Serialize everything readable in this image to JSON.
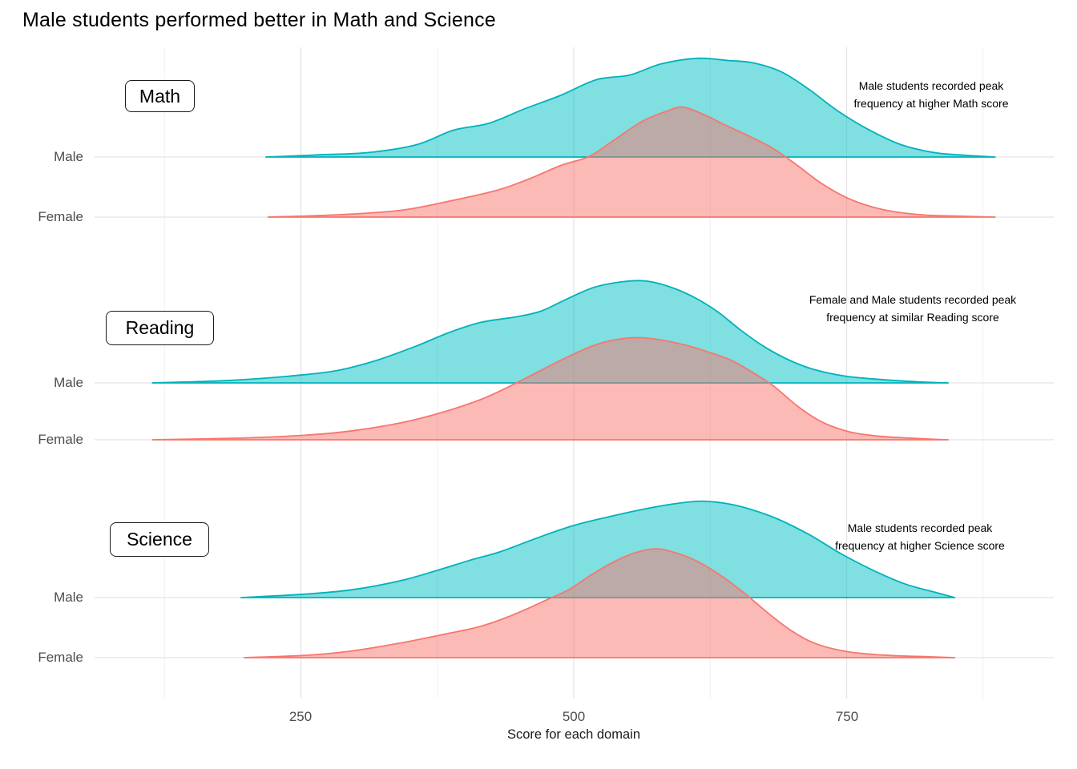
{
  "title": "Male students performed better in Math and Science",
  "x_axis": {
    "title": "Score for each domain",
    "tick_labels": [
      "250",
      "500",
      "750"
    ]
  },
  "row_labels": {
    "male": "Male",
    "female": "Female"
  },
  "panels": [
    {
      "label": "Math",
      "annotation_line1": "Male students recorded peak",
      "annotation_line2": "frequency at higher Math score"
    },
    {
      "label": "Reading",
      "annotation_line1": "Female and Male students recorded peak",
      "annotation_line2": "frequency at similar Reading score"
    },
    {
      "label": "Science",
      "annotation_line1": "Male students recorded peak",
      "annotation_line2": "frequency at higher Science score"
    }
  ],
  "colors": {
    "male_stroke": "#00B2BB",
    "male_fill": "rgba(0,191,196,0.5)",
    "female_stroke": "#F8766D",
    "female_fill": "rgba(248,118,109,0.5)",
    "grid_major": "#E4E4E4",
    "grid_minor": "#F1F1F1",
    "row_line": "#E4E4E4",
    "axis_text": "#4D4D4D",
    "text": "#000000"
  },
  "chart_data": {
    "type": "area",
    "subtype": "ridgeline-density",
    "title": "Male students performed better in Math and Science",
    "xlabel": "Score for each domain",
    "ylabel": "",
    "x_ticks": [
      250,
      500,
      750
    ],
    "x_minor_ticks": [
      125,
      375,
      625,
      875
    ],
    "x_range": [
      60,
      940
    ],
    "legend": "none",
    "groups": [
      "Male",
      "Female"
    ],
    "domains": [
      "Math",
      "Reading",
      "Science"
    ],
    "series": [
      {
        "domain": "Math",
        "gender": "Male",
        "panel": 0,
        "points": [
          [
            218,
            0
          ],
          [
            250,
            0.012
          ],
          [
            268,
            0.02
          ],
          [
            312,
            0.04
          ],
          [
            356,
            0.11
          ],
          [
            390,
            0.24
          ],
          [
            422,
            0.3
          ],
          [
            455,
            0.43
          ],
          [
            488,
            0.55
          ],
          [
            521,
            0.69
          ],
          [
            551,
            0.73
          ],
          [
            580,
            0.83
          ],
          [
            613,
            0.88
          ],
          [
            642,
            0.86
          ],
          [
            664,
            0.84
          ],
          [
            690,
            0.76
          ],
          [
            716,
            0.6
          ],
          [
            742,
            0.41
          ],
          [
            771,
            0.24
          ],
          [
            800,
            0.11
          ],
          [
            830,
            0.04
          ],
          [
            859,
            0.015
          ],
          [
            886,
            0
          ]
        ]
      },
      {
        "domain": "Math",
        "gender": "Female",
        "panel": 0,
        "points": [
          [
            220,
            0
          ],
          [
            283,
            0.02
          ],
          [
            341,
            0.06
          ],
          [
            385,
            0.14
          ],
          [
            430,
            0.24
          ],
          [
            459,
            0.34
          ],
          [
            488,
            0.46
          ],
          [
            514,
            0.54
          ],
          [
            536,
            0.68
          ],
          [
            562,
            0.85
          ],
          [
            584,
            0.94
          ],
          [
            600,
            0.98
          ],
          [
            620,
            0.91
          ],
          [
            639,
            0.82
          ],
          [
            661,
            0.72
          ],
          [
            683,
            0.61
          ],
          [
            705,
            0.46
          ],
          [
            727,
            0.3
          ],
          [
            753,
            0.16
          ],
          [
            782,
            0.07
          ],
          [
            819,
            0.02
          ],
          [
            855,
            0.008
          ],
          [
            886,
            0
          ]
        ]
      },
      {
        "domain": "Reading",
        "gender": "Male",
        "panel": 1,
        "points": [
          [
            114,
            0
          ],
          [
            180,
            0.02
          ],
          [
            239,
            0.06
          ],
          [
            283,
            0.11
          ],
          [
            319,
            0.2
          ],
          [
            356,
            0.33
          ],
          [
            386,
            0.45
          ],
          [
            415,
            0.54
          ],
          [
            448,
            0.59
          ],
          [
            470,
            0.64
          ],
          [
            492,
            0.74
          ],
          [
            518,
            0.85
          ],
          [
            543,
            0.9
          ],
          [
            565,
            0.91
          ],
          [
            587,
            0.86
          ],
          [
            609,
            0.77
          ],
          [
            631,
            0.64
          ],
          [
            653,
            0.47
          ],
          [
            675,
            0.32
          ],
          [
            698,
            0.2
          ],
          [
            720,
            0.12
          ],
          [
            749,
            0.06
          ],
          [
            782,
            0.03
          ],
          [
            815,
            0.01
          ],
          [
            843,
            0
          ]
        ]
      },
      {
        "domain": "Reading",
        "gender": "Female",
        "panel": 1,
        "points": [
          [
            114,
            0
          ],
          [
            195,
            0.015
          ],
          [
            253,
            0.04
          ],
          [
            297,
            0.08
          ],
          [
            341,
            0.15
          ],
          [
            378,
            0.24
          ],
          [
            415,
            0.36
          ],
          [
            444,
            0.49
          ],
          [
            474,
            0.64
          ],
          [
            499,
            0.76
          ],
          [
            521,
            0.85
          ],
          [
            543,
            0.9
          ],
          [
            562,
            0.91
          ],
          [
            580,
            0.89
          ],
          [
            604,
            0.84
          ],
          [
            624,
            0.78
          ],
          [
            644,
            0.71
          ],
          [
            664,
            0.6
          ],
          [
            683,
            0.48
          ],
          [
            705,
            0.3
          ],
          [
            727,
            0.16
          ],
          [
            753,
            0.07
          ],
          [
            782,
            0.03
          ],
          [
            819,
            0.01
          ],
          [
            843,
            0
          ]
        ]
      },
      {
        "domain": "Science",
        "gender": "Male",
        "panel": 2,
        "points": [
          [
            195,
            0
          ],
          [
            253,
            0.03
          ],
          [
            297,
            0.07
          ],
          [
            341,
            0.15
          ],
          [
            374,
            0.24
          ],
          [
            404,
            0.33
          ],
          [
            433,
            0.41
          ],
          [
            466,
            0.53
          ],
          [
            499,
            0.64
          ],
          [
            532,
            0.72
          ],
          [
            565,
            0.79
          ],
          [
            595,
            0.84
          ],
          [
            617,
            0.86
          ],
          [
            639,
            0.84
          ],
          [
            661,
            0.79
          ],
          [
            687,
            0.7
          ],
          [
            716,
            0.56
          ],
          [
            745,
            0.39
          ],
          [
            775,
            0.24
          ],
          [
            804,
            0.12
          ],
          [
            830,
            0.05
          ],
          [
            849,
            0
          ]
        ]
      },
      {
        "domain": "Science",
        "gender": "Female",
        "panel": 2,
        "points": [
          [
            198,
            0
          ],
          [
            253,
            0.02
          ],
          [
            297,
            0.06
          ],
          [
            341,
            0.13
          ],
          [
            382,
            0.21
          ],
          [
            415,
            0.28
          ],
          [
            444,
            0.38
          ],
          [
            474,
            0.51
          ],
          [
            496,
            0.61
          ],
          [
            518,
            0.75
          ],
          [
            540,
            0.87
          ],
          [
            558,
            0.94
          ],
          [
            576,
            0.97
          ],
          [
            595,
            0.93
          ],
          [
            613,
            0.86
          ],
          [
            635,
            0.73
          ],
          [
            657,
            0.57
          ],
          [
            679,
            0.39
          ],
          [
            701,
            0.23
          ],
          [
            723,
            0.12
          ],
          [
            753,
            0.05
          ],
          [
            789,
            0.02
          ],
          [
            826,
            0.008
          ],
          [
            849,
            0
          ]
        ]
      }
    ]
  }
}
